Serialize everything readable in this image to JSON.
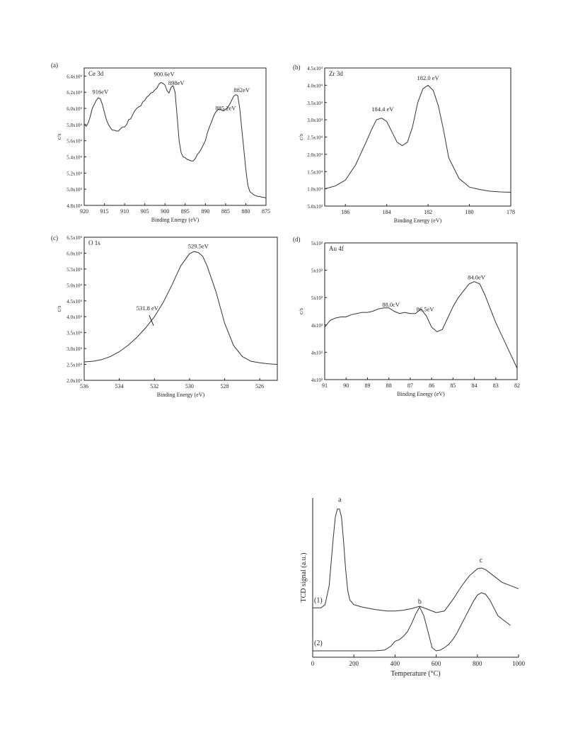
{
  "chart_data": [
    {
      "type": "line",
      "panel_label": "(a)",
      "inset_label": "Ce 3d",
      "xlabel": "Binding Energy (eV)",
      "ylabel": "c/s",
      "xlim": [
        920,
        875
      ],
      "ylim": [
        48000,
        65000
      ],
      "x_ticks": [
        "920",
        "915",
        "910",
        "905",
        "900",
        "895",
        "890",
        "885",
        "880",
        "875"
      ],
      "x_tick_values": [
        920,
        915,
        910,
        905,
        900,
        895,
        890,
        885,
        880,
        875
      ],
      "y_ticks": [
        "4.8x10⁴",
        "5.0x10⁴",
        "5.2x10⁴",
        "5.4x10⁴",
        "5.6x10⁴",
        "5.8x10⁴",
        "6.0x10⁴",
        "6.2x10⁴",
        "6.4x10⁴"
      ],
      "y_tick_values": [
        48000,
        50000,
        52000,
        54000,
        56000,
        58000,
        60000,
        62000,
        64000
      ],
      "annotations": [
        {
          "text": "916eV",
          "x": 916.0,
          "y": 61800
        },
        {
          "text": "900.6eV",
          "x": 900.2,
          "y": 64000
        },
        {
          "text": "898eV",
          "x": 897.2,
          "y": 62900
        },
        {
          "text": "885.2eV",
          "x": 885.0,
          "y": 59800
        },
        {
          "text": "882eV",
          "x": 881.0,
          "y": 62000
        }
      ],
      "series": [
        {
          "x": [
            920,
            919.5,
            919,
            918.5,
            918,
            917.5,
            917,
            916.5,
            916,
            915.5,
            915,
            914.5,
            914,
            913.5,
            913,
            912.5,
            912,
            911.5,
            911,
            910.5,
            910,
            909.5,
            909,
            908.5,
            908,
            907.5,
            907,
            906.5,
            906,
            905.5,
            905,
            904.5,
            904,
            903.5,
            903,
            902.5,
            902,
            901.5,
            901,
            900.5,
            900,
            899.5,
            899,
            898.5,
            898,
            897.5,
            897,
            896.5,
            896,
            895.5,
            895,
            894.5,
            894,
            893.5,
            893,
            892.5,
            892,
            891.5,
            891,
            890.5,
            890,
            889.5,
            889,
            888.5,
            888,
            887.5,
            887,
            886.5,
            886,
            885.5,
            885,
            884.5,
            884,
            883.5,
            883,
            882.5,
            882,
            881.5,
            881,
            880.5,
            880,
            879.5,
            879,
            878.5,
            878,
            877.5,
            877,
            876.5,
            876,
            875.5,
            875
          ],
          "y": [
            58000,
            57800,
            58200,
            59000,
            60000,
            60500,
            61000,
            61300,
            61200,
            60500,
            59500,
            58600,
            58000,
            57600,
            57300,
            57300,
            57200,
            57200,
            57500,
            57700,
            57700,
            58000,
            58600,
            58700,
            59200,
            59700,
            60000,
            60200,
            60300,
            60800,
            61000,
            61400,
            61600,
            61900,
            62000,
            62300,
            62500,
            63000,
            63200,
            63100,
            62900,
            62200,
            61900,
            62600,
            62800,
            62000,
            59000,
            56000,
            54500,
            54000,
            53900,
            53700,
            53600,
            53500,
            53500,
            53800,
            54300,
            54600,
            55000,
            55500,
            56000,
            57000,
            57700,
            58300,
            59000,
            59500,
            59800,
            59900,
            59800,
            59700,
            59900,
            60100,
            60500,
            61000,
            61500,
            61700,
            61600,
            60000,
            57500,
            55000,
            52500,
            50500,
            49700,
            49500,
            49300,
            49200,
            49100,
            49100,
            49000,
            49000,
            48900
          ]
        }
      ]
    },
    {
      "type": "line",
      "panel_label": "(b)",
      "inset_label": "Zr 3d",
      "xlabel": "Binding Energy (eV)",
      "ylabel": "c/s",
      "xlim": [
        187,
        178
      ],
      "ylim": [
        5000,
        45000
      ],
      "x_ticks": [
        "186",
        "184",
        "182",
        "180",
        "178"
      ],
      "x_tick_values": [
        186,
        184,
        182,
        180,
        178
      ],
      "y_ticks": [
        "5.0x10³",
        "1.0x10⁴",
        "1.5x10⁴",
        "2.0x10⁴",
        "2.5x10⁴",
        "3.0x10⁴",
        "3.5x10⁴",
        "4.0x10⁴",
        "4.5x10⁴"
      ],
      "y_tick_values": [
        5000,
        10000,
        15000,
        20000,
        25000,
        30000,
        35000,
        40000,
        45000
      ],
      "annotations": [
        {
          "text": "184.4 eV",
          "x": 184.2,
          "y": 32500
        },
        {
          "text": "182.0 eV",
          "x": 182.0,
          "y": 41500
        }
      ],
      "series": [
        {
          "x": [
            187,
            186.5,
            186,
            185.5,
            185,
            184.75,
            184.5,
            184.25,
            184,
            183.75,
            183.5,
            183.25,
            183,
            182.75,
            182.5,
            182.25,
            182,
            181.75,
            181.5,
            181.25,
            181,
            180.5,
            180,
            179.5,
            179,
            178.5,
            178
          ],
          "y": [
            10000,
            10800,
            12500,
            17000,
            23500,
            27000,
            30000,
            30500,
            29500,
            26500,
            23500,
            22500,
            23500,
            28000,
            35000,
            39000,
            40000,
            38500,
            34000,
            27000,
            19000,
            13000,
            10500,
            9800,
            9300,
            9100,
            9000
          ]
        }
      ]
    },
    {
      "type": "line",
      "panel_label": "(c)",
      "inset_label": "O 1s",
      "xlabel": "Binding Energy (eV)",
      "ylabel": "c/s",
      "xlim": [
        536,
        525
      ],
      "ylim": [
        20000,
        65000
      ],
      "x_ticks": [
        "536",
        "534",
        "532",
        "530",
        "528",
        "526"
      ],
      "x_tick_values": [
        536,
        534,
        532,
        530,
        528,
        526
      ],
      "y_ticks": [
        "2.0x10⁴",
        "2.5x10⁴",
        "3.0x10⁴",
        "3.5x10⁴",
        "4.0x10⁴",
        "4.5x10⁴",
        "5.0x10⁴",
        "5.5x10⁴",
        "6.0x10⁴",
        "6.5x10⁴"
      ],
      "y_tick_values": [
        20000,
        25000,
        30000,
        35000,
        40000,
        45000,
        50000,
        55000,
        60000,
        65000
      ],
      "annotations": [
        {
          "text": "529.5eV",
          "x": 529.5,
          "y": 61500
        },
        {
          "text": "531.8 eV",
          "x": 532.4,
          "y": 42000
        }
      ],
      "series": [
        {
          "x": [
            536,
            535.5,
            535,
            534.5,
            534,
            533.5,
            533,
            532.5,
            532,
            531.5,
            531,
            530.5,
            530,
            529.75,
            529.5,
            529.25,
            529,
            528.5,
            528,
            527.5,
            527,
            526.5,
            526,
            525.5,
            525
          ],
          "y": [
            25800,
            26000,
            26500,
            27500,
            29000,
            31000,
            33500,
            36500,
            40000,
            44500,
            50000,
            56000,
            59800,
            60500,
            60200,
            59000,
            56000,
            48000,
            38000,
            31000,
            27500,
            26000,
            25500,
            25200,
            25000
          ]
        }
      ]
    },
    {
      "type": "line",
      "panel_label": "(d)",
      "inset_label": "Au 4f",
      "xlabel": "Binding Energy (eV)",
      "ylabel": "c/s",
      "xlim": [
        91,
        82
      ],
      "ylim": [
        0,
        6
      ],
      "x_ticks": [
        "91",
        "90",
        "89",
        "88",
        "87",
        "86",
        "85",
        "84",
        "83",
        "82"
      ],
      "x_tick_values": [
        91,
        90,
        89,
        88,
        87,
        86,
        85,
        84,
        83,
        82
      ],
      "y_ticks": [
        "4x10³",
        "4x10³",
        "4x10³",
        "5x10³",
        "5x10³",
        "5x10³"
      ],
      "y_tick_values": [
        0,
        1.2,
        2.4,
        3.6,
        4.8,
        6
      ],
      "annotations": [
        {
          "text": "88.0cV",
          "x": 87.9,
          "y": 3.2
        },
        {
          "text": "86.5eV",
          "x": 86.3,
          "y": 3.0
        },
        {
          "text": "84.0eV",
          "x": 83.9,
          "y": 4.4
        }
      ],
      "series": [
        {
          "x": [
            91,
            90.75,
            90.5,
            90.25,
            90,
            89.75,
            89.5,
            89.25,
            89,
            88.75,
            88.5,
            88.25,
            88,
            87.75,
            87.5,
            87.25,
            87,
            86.75,
            86.5,
            86.25,
            86,
            85.75,
            85.5,
            85.25,
            85,
            84.75,
            84.5,
            84.25,
            84,
            83.75,
            83.5,
            83.25,
            83,
            82.75,
            82.5,
            82.25,
            82
          ],
          "y": [
            2.3,
            2.6,
            2.7,
            2.75,
            2.75,
            2.85,
            2.9,
            2.95,
            2.95,
            3.0,
            3.1,
            3.15,
            3.15,
            3.0,
            2.9,
            2.95,
            2.9,
            2.9,
            3.1,
            2.8,
            2.3,
            2.1,
            2.2,
            2.7,
            3.2,
            3.6,
            3.9,
            4.2,
            4.3,
            4.2,
            3.7,
            3.1,
            2.5,
            2.0,
            1.5,
            1.0,
            0.5
          ]
        }
      ]
    },
    {
      "type": "line",
      "xlabel": "Temperature (°C)",
      "ylabel": "TCD signal (a.u.)",
      "xlim": [
        0,
        1000
      ],
      "ylim": [
        0,
        10
      ],
      "x_ticks": [
        "0",
        "200",
        "400",
        "600",
        "800",
        "1000"
      ],
      "x_tick_values": [
        0,
        200,
        400,
        600,
        800,
        1000
      ],
      "annotations": [
        {
          "text": "a",
          "x": 132,
          "y": 9.75
        },
        {
          "text": "b",
          "x": 520,
          "y": 3.35
        },
        {
          "text": "c",
          "x": 818,
          "y": 5.95
        }
      ],
      "series": [
        {
          "name": "(1)",
          "x": [
            0,
            20,
            40,
            60,
            80,
            100,
            110,
            120,
            130,
            140,
            150,
            160,
            170,
            180,
            200,
            240,
            300,
            360,
            400,
            440,
            480,
            520,
            560,
            600,
            640,
            680,
            720,
            760,
            800,
            820,
            840,
            880,
            920,
            960,
            1000
          ],
          "y": [
            3.1,
            3.1,
            3.1,
            3.3,
            4.5,
            7.5,
            8.8,
            9.3,
            9.3,
            8.8,
            7.3,
            5.5,
            4.2,
            3.6,
            3.3,
            3.15,
            3.0,
            2.9,
            2.9,
            2.95,
            3.05,
            3.2,
            3.0,
            2.8,
            2.9,
            3.6,
            4.4,
            5.1,
            5.55,
            5.6,
            5.5,
            5.1,
            4.7,
            4.5,
            4.3
          ]
        },
        {
          "name": "(2)",
          "x": [
            0,
            100,
            200,
            300,
            350,
            380,
            400,
            420,
            440,
            460,
            480,
            500,
            520,
            540,
            560,
            580,
            600,
            620,
            640,
            660,
            680,
            700,
            720,
            740,
            760,
            780,
            800,
            820,
            840,
            860,
            880,
            900,
            940,
            960
          ],
          "y": [
            0.4,
            0.4,
            0.4,
            0.4,
            0.45,
            0.7,
            1.0,
            1.1,
            1.3,
            1.6,
            2.1,
            2.7,
            3.15,
            2.6,
            1.6,
            0.6,
            0.4,
            0.45,
            0.6,
            0.8,
            1.1,
            1.5,
            2.0,
            2.5,
            3.0,
            3.5,
            3.9,
            4.05,
            3.95,
            3.6,
            3.1,
            2.6,
            2.2,
            2.0
          ]
        }
      ]
    }
  ]
}
